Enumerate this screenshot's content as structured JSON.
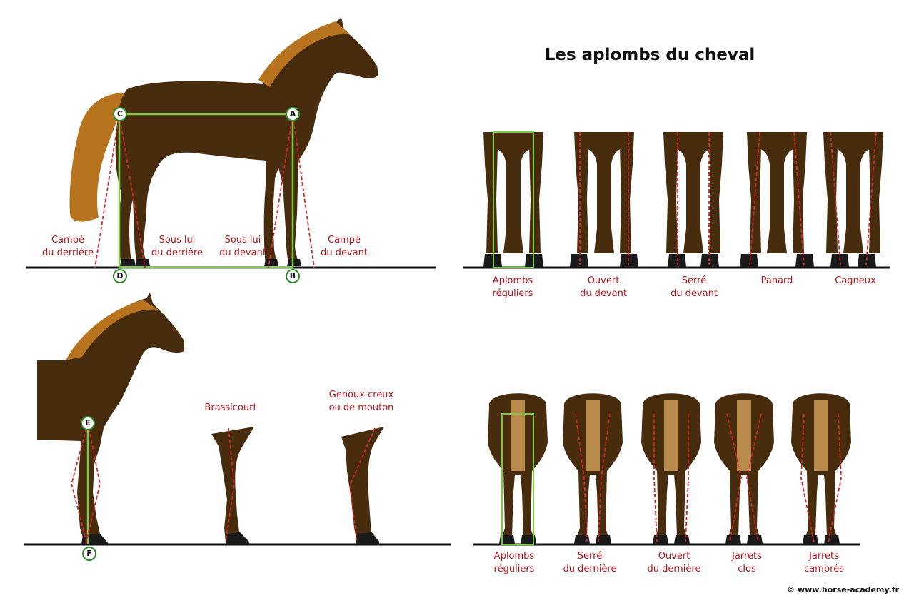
{
  "title": "Les aplombs du cheval",
  "credit": "© www.horse-academy.fr",
  "colors": {
    "coat": "#472d0e",
    "mane": "#b8731e",
    "tail_light": "#b88a4b",
    "hoof": "#1a1a1a",
    "reference_line": "#7ac943",
    "deviation_line": "#d9262b",
    "label_text": "#b3151b"
  },
  "side_view": {
    "points": [
      "A",
      "B",
      "C",
      "D"
    ],
    "labels": [
      {
        "line1": "Campé",
        "line2": "du derrière"
      },
      {
        "line1": "Sous lui",
        "line2": "du derrière"
      },
      {
        "line1": "Sous lui",
        "line2": "du devant"
      },
      {
        "line1": "Campé",
        "line2": "du devant"
      }
    ]
  },
  "fore_side_view": {
    "points": [
      "E",
      "F"
    ],
    "labels": [
      {
        "line1": "Brassicourt",
        "line2": ""
      },
      {
        "line1": "Genoux creux",
        "line2": "ou de mouton"
      }
    ]
  },
  "front_view": {
    "labels": [
      {
        "line1": "Aplombs",
        "line2": "réguliers"
      },
      {
        "line1": "Ouvert",
        "line2": "du devant"
      },
      {
        "line1": "Serré",
        "line2": "du devant"
      },
      {
        "line1": "Panard",
        "line2": ""
      },
      {
        "line1": "Cagneux",
        "line2": ""
      }
    ]
  },
  "rear_view": {
    "labels": [
      {
        "line1": "Aplombs",
        "line2": "réguliers"
      },
      {
        "line1": "Serré",
        "line2": "du dernière"
      },
      {
        "line1": "Ouvert",
        "line2": "du dernière"
      },
      {
        "line1": "Jarrets",
        "line2": "clos"
      },
      {
        "line1": "Jarrets",
        "line2": "cambrés"
      }
    ]
  }
}
